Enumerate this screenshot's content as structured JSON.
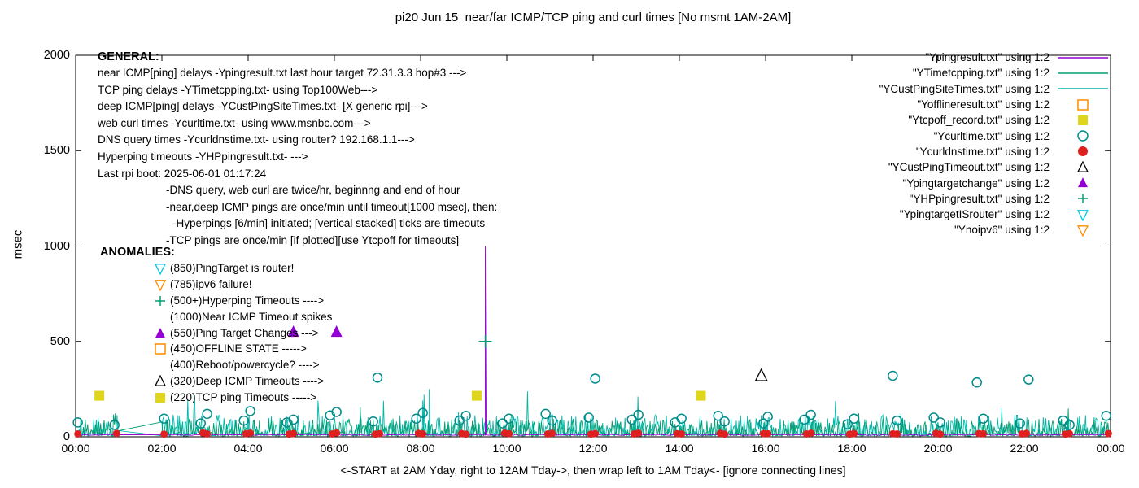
{
  "title": "pi20 Jun 15  near/far ICMP/TCP ping and curl times [No msmt 1AM-2AM]",
  "general": {
    "heading": "GENERAL:",
    "lines": [
      {
        "indent": 0,
        "text": "near ICMP[ping] delays -Ypingresult.txt last hour target 72.31.3.3 hop#3 --->"
      },
      {
        "indent": 0,
        "text": "TCP ping delays -YTimetcpping.txt- using Top100Web--->"
      },
      {
        "indent": 0,
        "text": "deep ICMP[ping] delays -YCustPingSiteTimes.txt- [X generic rpi]--->"
      },
      {
        "indent": 0,
        "text": "web curl times -Ycurltime.txt- using www.msnbc.com--->"
      },
      {
        "indent": 0,
        "text": "DNS query times -Ycurldnstime.txt- using router? 192.168.1.1--->"
      },
      {
        "indent": 0,
        "text": "Hyperping timeouts -YHPpingresult.txt- --->"
      },
      {
        "indent": 0,
        "text": "Last rpi boot: 2025-06-01 01:17:24"
      },
      {
        "indent": 1,
        "text": "-DNS query, web curl are twice/hr, beginnng and end of hour"
      },
      {
        "indent": 1,
        "text": "-near,deep ICMP pings are once/min until timeout[1000 msec], then:"
      },
      {
        "indent": 2,
        "text": "-Hyperpings [6/min] initiated; [vertical stacked] ticks are timeouts"
      },
      {
        "indent": 1,
        "text": "-TCP pings are once/min [if plotted][use Ytcpoff for timeouts]"
      }
    ]
  },
  "anomalies": {
    "heading": "ANOMALIES:",
    "lines": [
      {
        "marker": "triangle-down-open",
        "color": "#00c8e0",
        "text": "(850)PingTarget is router!"
      },
      {
        "marker": "triangle-down-open",
        "color": "#ff8c00",
        "text": "(785)ipv6 failure!"
      },
      {
        "marker": "plus",
        "color": "#009e73",
        "text": "(500+)Hyperping Timeouts ---->"
      },
      {
        "marker": null,
        "color": null,
        "text": "(1000)Near ICMP Timeout spikes"
      },
      {
        "marker": "triangle-up-filled",
        "color": "#9400d3",
        "text": "(550)Ping Target Changes --->"
      },
      {
        "marker": "square-open",
        "color": "#ff8c00",
        "text": "(450)OFFLINE STATE ----->"
      },
      {
        "marker": null,
        "color": null,
        "text": "(400)Reboot/powercycle? ---->"
      },
      {
        "marker": "triangle-up-open",
        "color": "#000000",
        "text": "(320)Deep ICMP Timeouts ---->"
      },
      {
        "marker": "square-filled",
        "color": "#ded51c",
        "text": "(220)TCP ping Timeouts ----->"
      }
    ]
  },
  "chart_data": {
    "type": "line+scatter",
    "title": "pi20 Jun 15  near/far ICMP/TCP ping and curl times [No msmt 1AM-2AM]",
    "xlabel": "<-START at 2AM Yday, right to 12AM Tday->, then wrap left to 1AM Tday<- [ignore connecting lines]",
    "ylabel": "msec",
    "ylim": [
      0,
      2000
    ],
    "xlim_hours": [
      0,
      24
    ],
    "grid": false,
    "legend_position": "top-right",
    "no_measurement_gap_hours": [
      1,
      2
    ],
    "y_ticks": [
      {
        "value": 0,
        "label": "0"
      },
      {
        "value": 500,
        "label": "500"
      },
      {
        "value": 1000,
        "label": "1000"
      },
      {
        "value": 1500,
        "label": "1500"
      },
      {
        "value": 2000,
        "label": "2000"
      }
    ],
    "x_ticks": [
      {
        "hour": 0,
        "label": "00:00"
      },
      {
        "hour": 2,
        "label": "02:00"
      },
      {
        "hour": 4,
        "label": "04:00"
      },
      {
        "hour": 6,
        "label": "06:00"
      },
      {
        "hour": 8,
        "label": "08:00"
      },
      {
        "hour": 10,
        "label": "10:00"
      },
      {
        "hour": 12,
        "label": "12:00"
      },
      {
        "hour": 14,
        "label": "14:00"
      },
      {
        "hour": 16,
        "label": "16:00"
      },
      {
        "hour": 18,
        "label": "18:00"
      },
      {
        "hour": 20,
        "label": "20:00"
      },
      {
        "hour": 22,
        "label": "22:00"
      },
      {
        "hour": 24,
        "label": "00:00"
      }
    ],
    "series": [
      {
        "key": "near_icmp",
        "name": "\"Ypingresult.txt\" using 1:2",
        "type": "line",
        "render": "flat",
        "color": "#9400d3",
        "baseline_msec": 10,
        "jitter_msec": 5,
        "seed": 3,
        "spikes": [
          {
            "x_hour": 9.5,
            "msec": 1000
          }
        ]
      },
      {
        "key": "tcp_ping",
        "name": "\"YTimetcpping.txt\" using 1:2",
        "type": "line",
        "render": "noise",
        "color": "#009e73",
        "noise_min_msec": 4,
        "noise_typ_msec": 38,
        "noise_max_msec": 170,
        "seed": 11,
        "spikes": []
      },
      {
        "key": "deep_icmp",
        "name": "\"YCustPingSiteTimes.txt\" using 1:2",
        "type": "line",
        "render": "noise",
        "color": "#00b8a9",
        "noise_min_msec": 5,
        "noise_typ_msec": 46,
        "noise_max_msec": 250,
        "seed": 29,
        "spikes": [
          {
            "x_hour": 8.05,
            "msec": 190
          },
          {
            "x_hour": 8.2,
            "msec": 250
          }
        ]
      },
      {
        "key": "offline",
        "name": "\"Yofflineresult.txt\" using 1:2",
        "type": "scatter",
        "marker": "square-open",
        "color": "#ff8c00",
        "size": 6,
        "points": []
      },
      {
        "key": "tcp_timeout",
        "name": "\"Ytcpoff_record.txt\" using 1:2",
        "type": "scatter",
        "marker": "square-filled",
        "color": "#ded51c",
        "size": 6,
        "points": [
          [
            0.55,
            215
          ],
          [
            9.3,
            215
          ],
          [
            14.5,
            215
          ]
        ]
      },
      {
        "key": "web_curl",
        "name": "\"Ycurltime.txt\" using 1:2",
        "type": "scatter",
        "marker": "circle-open",
        "color": "#008b8b",
        "size": 5.5,
        "points": [
          [
            0.05,
            75
          ],
          [
            0.9,
            62
          ],
          [
            2.05,
            95
          ],
          [
            2.9,
            70
          ],
          [
            3.05,
            120
          ],
          [
            3.9,
            85
          ],
          [
            4.05,
            135
          ],
          [
            4.9,
            75
          ],
          [
            5.05,
            90
          ],
          [
            5.9,
            112
          ],
          [
            6.05,
            130
          ],
          [
            6.9,
            80
          ],
          [
            7.0,
            310
          ],
          [
            7.9,
            95
          ],
          [
            8.05,
            125
          ],
          [
            8.9,
            85
          ],
          [
            9.05,
            110
          ],
          [
            9.9,
            70
          ],
          [
            10.05,
            95
          ],
          [
            10.9,
            120
          ],
          [
            11.05,
            85
          ],
          [
            11.9,
            100
          ],
          [
            12.05,
            305
          ],
          [
            12.9,
            90
          ],
          [
            13.05,
            115
          ],
          [
            13.9,
            75
          ],
          [
            14.05,
            95
          ],
          [
            14.9,
            110
          ],
          [
            15.05,
            80
          ],
          [
            15.95,
            70
          ],
          [
            16.05,
            105
          ],
          [
            16.9,
            90
          ],
          [
            17.05,
            115
          ],
          [
            17.9,
            65
          ],
          [
            18.05,
            95
          ],
          [
            18.95,
            320
          ],
          [
            19.05,
            85
          ],
          [
            19.9,
            100
          ],
          [
            20.05,
            75
          ],
          [
            20.9,
            285
          ],
          [
            21.05,
            95
          ],
          [
            21.9,
            70
          ],
          [
            22.1,
            300
          ],
          [
            22.9,
            85
          ],
          [
            23.05,
            62
          ],
          [
            23.9,
            110
          ]
        ]
      },
      {
        "key": "dns_query",
        "name": "\"Ycurldnstime.txt\" using 1:2",
        "type": "scatter",
        "marker": "circle-filled",
        "color": "#df2020",
        "size": 4.5,
        "points": [
          [
            0.05,
            15
          ],
          [
            0.95,
            18
          ],
          [
            2.05,
            14
          ],
          [
            2.95,
            20
          ],
          [
            3.05,
            15
          ],
          [
            3.95,
            16
          ],
          [
            4.05,
            19
          ],
          [
            4.95,
            14
          ],
          [
            5.05,
            17
          ],
          [
            5.95,
            15
          ],
          [
            6.05,
            20
          ],
          [
            6.95,
            14
          ],
          [
            7.05,
            16
          ],
          [
            7.95,
            18
          ],
          [
            8.05,
            15
          ],
          [
            8.95,
            17
          ],
          [
            9.05,
            14
          ],
          [
            9.95,
            19
          ],
          [
            10.05,
            16
          ],
          [
            10.95,
            15
          ],
          [
            11.05,
            18
          ],
          [
            11.95,
            14
          ],
          [
            12.05,
            17
          ],
          [
            12.95,
            15
          ],
          [
            13.05,
            19
          ],
          [
            13.95,
            16
          ],
          [
            14.05,
            15
          ],
          [
            14.95,
            18
          ],
          [
            15.05,
            14
          ],
          [
            15.95,
            17
          ],
          [
            16.05,
            16
          ],
          [
            16.95,
            15
          ],
          [
            17.05,
            19
          ],
          [
            17.95,
            14
          ],
          [
            18.05,
            17
          ],
          [
            18.95,
            16
          ],
          [
            19.05,
            15
          ],
          [
            19.95,
            18
          ],
          [
            20.05,
            14
          ],
          [
            20.95,
            17
          ],
          [
            21.05,
            16
          ],
          [
            21.95,
            15
          ],
          [
            22.05,
            18
          ],
          [
            22.95,
            14
          ],
          [
            23.05,
            16
          ],
          [
            23.95,
            17
          ]
        ]
      },
      {
        "key": "deep_icmp_timeout",
        "name": "\"YCustPingTimeout.txt\" using 1:2",
        "type": "scatter",
        "marker": "triangle-up-open",
        "color": "#000000",
        "size": 7,
        "points": [
          [
            15.9,
            320
          ]
        ]
      },
      {
        "key": "ping_target_change",
        "name": "\"Ypingtargetchange\" using 1:2",
        "type": "scatter",
        "marker": "triangle-up-filled",
        "color": "#9400d3",
        "size": 7,
        "points": [
          [
            5.05,
            550
          ],
          [
            6.05,
            550
          ]
        ]
      },
      {
        "key": "hyperping_timeout",
        "name": "\"YHPpingresult.txt\" using 1:2",
        "type": "scatter",
        "marker": "plus",
        "color": "#009e73",
        "size": 8,
        "points": [
          [
            9.5,
            500
          ]
        ]
      },
      {
        "key": "target_is_router",
        "name": "\"YpingtargetISrouter\" using 1:2",
        "type": "scatter",
        "marker": "triangle-down-open",
        "color": "#00c8e0",
        "size": 7,
        "points": []
      },
      {
        "key": "no_ipv6",
        "name": "\"Ynoipv6\" using 1:2",
        "type": "scatter",
        "marker": "triangle-down-open",
        "color": "#ff8c00",
        "size": 7,
        "points": []
      }
    ]
  }
}
